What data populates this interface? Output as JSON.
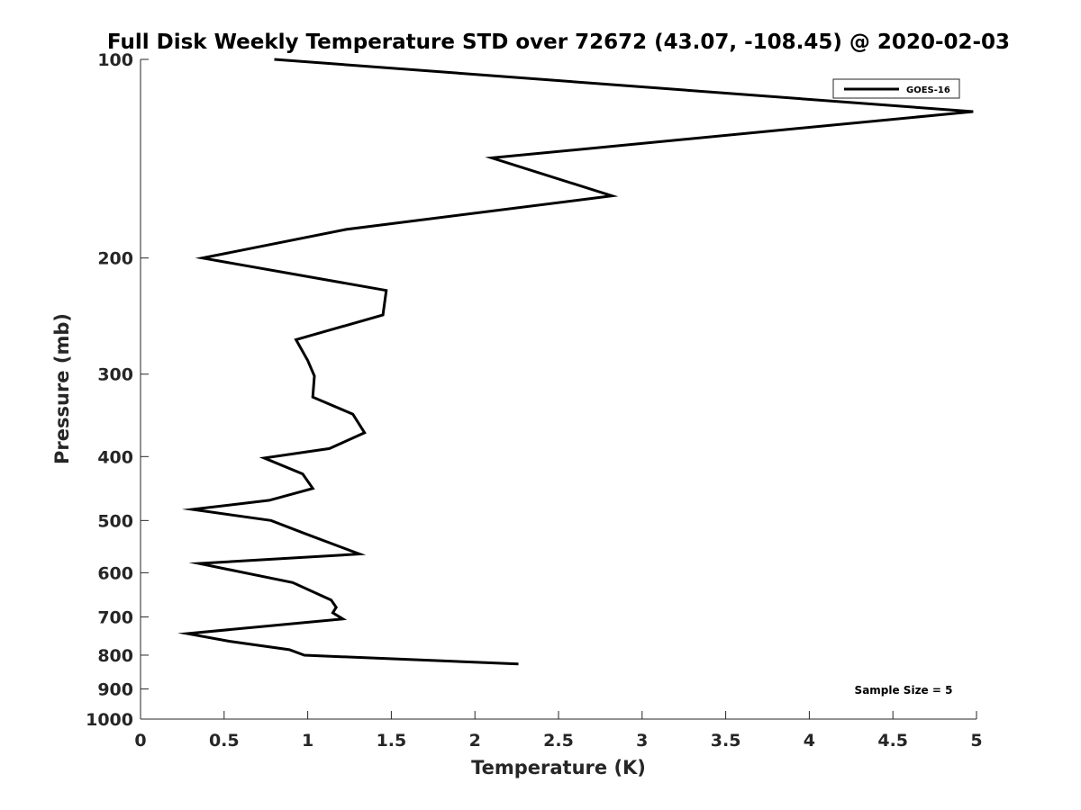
{
  "chart_data": {
    "type": "line",
    "title": "Full Disk Weekly Temperature STD over 72672 (43.07, -108.45) @ 2020-02-03",
    "xlabel": "Temperature (K)",
    "ylabel": "Pressure (mb)",
    "xlim": [
      0,
      5
    ],
    "ylim": [
      100,
      1000
    ],
    "y_scale": "log",
    "y_reversed": true,
    "grid": false,
    "x_ticks": [
      0,
      0.5,
      1,
      1.5,
      2,
      2.5,
      3,
      3.5,
      4,
      4.5,
      5
    ],
    "x_tick_labels": [
      "0",
      "0.5",
      "1",
      "1.5",
      "2",
      "2.5",
      "3",
      "3.5",
      "4",
      "4.5",
      "5"
    ],
    "y_ticks": [
      100,
      200,
      300,
      400,
      500,
      600,
      700,
      800,
      900,
      1000
    ],
    "y_tick_labels": [
      "100",
      "200",
      "300",
      "400",
      "500",
      "600",
      "700",
      "800",
      "900",
      "1000"
    ],
    "legend_position": "top-right",
    "annotation": "Sample Size = 5",
    "series": [
      {
        "name": "GOES-16",
        "color": "#000000",
        "x": [
          0.8,
          4.98,
          2.1,
          2.82,
          1.23,
          0.37,
          1.47,
          1.45,
          0.93,
          1.0,
          1.04,
          1.03,
          1.27,
          1.34,
          1.13,
          0.74,
          0.97,
          1.03,
          0.77,
          0.31,
          0.78,
          0.99,
          1.31,
          0.35,
          0.91,
          1.14,
          1.17,
          1.15,
          1.21,
          0.28,
          0.53,
          0.89,
          0.98,
          2.26
        ],
        "y": [
          100,
          120,
          141,
          161,
          181,
          200,
          224,
          244,
          266,
          286,
          302,
          325,
          345,
          368,
          389,
          402,
          425,
          447,
          466,
          481,
          500,
          524,
          562,
          581,
          621,
          660,
          677,
          690,
          705,
          742,
          762,
          785,
          800,
          825
        ]
      }
    ]
  }
}
